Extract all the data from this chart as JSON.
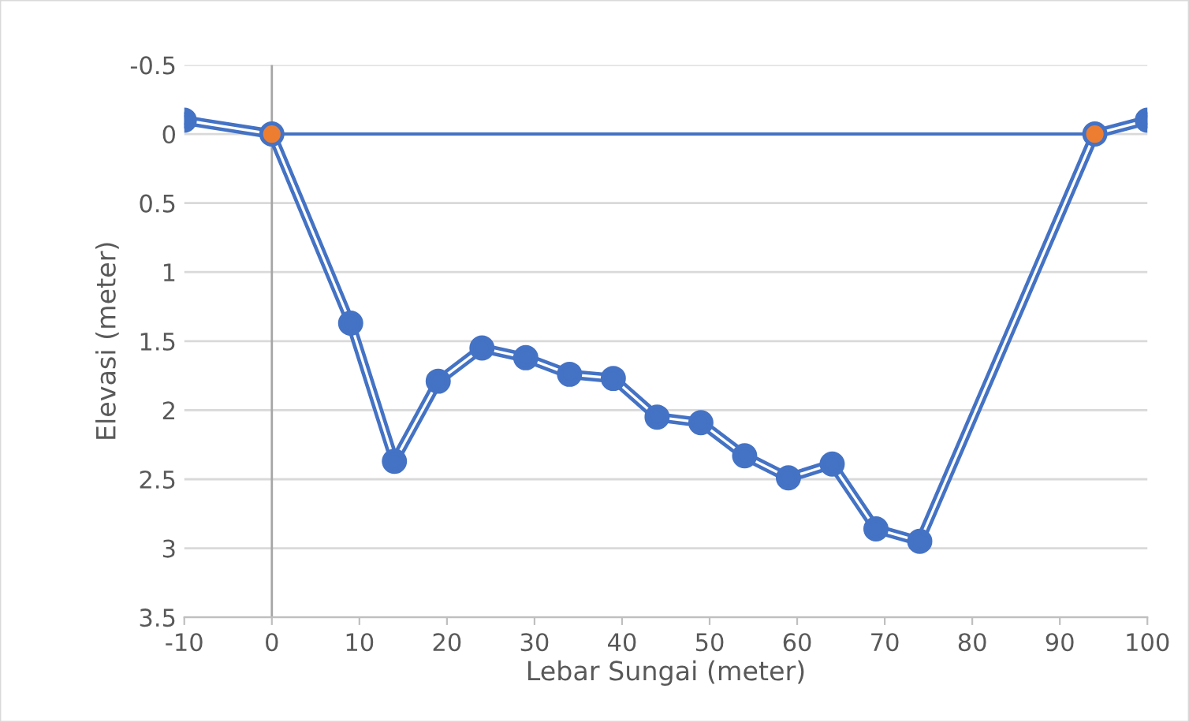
{
  "chart_data": {
    "type": "line",
    "xlabel": "Lebar Sungai (meter)",
    "ylabel": "Elevasi (meter)",
    "xlim": [
      -10,
      100
    ],
    "xticks": [
      -10,
      0,
      10,
      20,
      30,
      40,
      50,
      60,
      70,
      80,
      90,
      100
    ],
    "ylim": [
      3.5,
      -0.5
    ],
    "yticks": [
      -0.5,
      0,
      0.5,
      1,
      1.5,
      2,
      2.5,
      3,
      3.5
    ],
    "grid": "y",
    "marker": "circle",
    "legend": false,
    "ref_lines": [
      {
        "axis": "x",
        "value": 0,
        "color": "#a6a6a6"
      }
    ],
    "series": [
      {
        "color": "#4472c4",
        "x": [
          -10,
          0,
          9,
          14,
          19,
          24,
          29,
          34,
          39,
          44,
          49,
          54,
          59,
          64,
          69,
          74,
          94,
          100
        ],
        "values": [
          -0.1,
          0,
          1.37,
          2.37,
          1.79,
          1.55,
          1.62,
          1.74,
          1.77,
          2.05,
          2.09,
          2.33,
          2.49,
          2.39,
          2.86,
          2.95,
          0,
          -0.1
        ]
      },
      {
        "type": "line",
        "color": "#4472c4",
        "colors": [
          "#ed7d31",
          "#ed7d31"
        ],
        "x": [
          0,
          94
        ],
        "values": [
          0,
          0
        ]
      }
    ]
  }
}
